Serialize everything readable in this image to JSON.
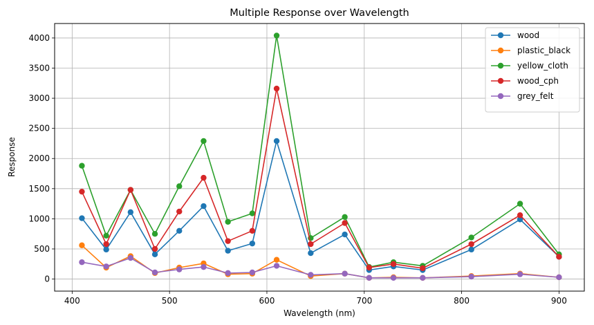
{
  "chart_data": {
    "type": "line",
    "title": "Multiple Response over Wavelength",
    "xlabel": "Wavelength (nm)",
    "ylabel": "Response",
    "xlim": [
      382,
      926
    ],
    "ylim": [
      -200,
      4240
    ],
    "xticks": [
      400,
      500,
      600,
      700,
      800,
      900
    ],
    "yticks": [
      0,
      500,
      1000,
      1500,
      2000,
      2500,
      3000,
      3500,
      4000
    ],
    "grid": true,
    "legend_position": "top-right",
    "x": [
      410,
      435,
      460,
      485,
      510,
      535,
      560,
      585,
      610,
      645,
      680,
      705,
      730,
      760,
      810,
      860,
      900
    ],
    "series": [
      {
        "name": "wood",
        "color": "#1f77b4",
        "values": [
          1010,
          490,
          1110,
          410,
          800,
          1210,
          470,
          590,
          2290,
          430,
          740,
          150,
          210,
          150,
          490,
          990,
          370
        ]
      },
      {
        "name": "plastic_black",
        "color": "#ff7f0e",
        "values": [
          560,
          190,
          380,
          100,
          190,
          260,
          80,
          90,
          320,
          50,
          90,
          20,
          30,
          20,
          50,
          90,
          30
        ]
      },
      {
        "name": "yellow_cloth",
        "color": "#2ca02c",
        "values": [
          1880,
          720,
          1480,
          750,
          1540,
          2290,
          950,
          1090,
          4040,
          680,
          1030,
          200,
          280,
          220,
          690,
          1250,
          410
        ]
      },
      {
        "name": "wood_cph",
        "color": "#d62728",
        "values": [
          1450,
          580,
          1480,
          500,
          1120,
          1680,
          630,
          800,
          3160,
          580,
          930,
          190,
          250,
          180,
          580,
          1060,
          370
        ]
      },
      {
        "name": "grey_felt",
        "color": "#9467bd",
        "values": [
          280,
          210,
          350,
          110,
          160,
          200,
          100,
          110,
          220,
          70,
          90,
          20,
          20,
          20,
          40,
          80,
          30
        ]
      }
    ]
  }
}
